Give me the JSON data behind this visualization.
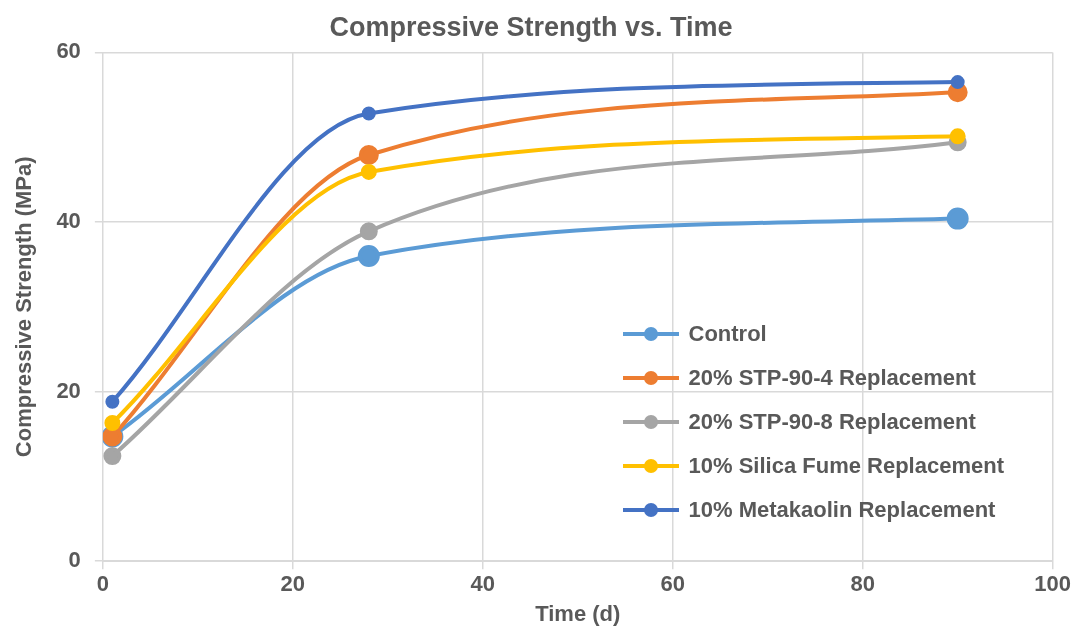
{
  "chart_data": {
    "type": "line",
    "title": "Compressive Strength vs. Time",
    "xlabel": "Time (d)",
    "ylabel": "Compressive Strength (MPa)",
    "x": [
      1,
      28,
      90
    ],
    "xlim": [
      0,
      100
    ],
    "xticks": [
      0,
      20,
      40,
      60,
      80,
      100
    ],
    "ylim": [
      0,
      60
    ],
    "yticks": [
      0,
      20,
      40,
      60
    ],
    "grid": true,
    "legend": "right",
    "marker": "circle",
    "line_style": "solid",
    "series": [
      {
        "name": "Control",
        "color": "#5b9bd5",
        "values": [
          14.7,
          36.0,
          40.4
        ]
      },
      {
        "name": "20% STP-90-4 Replacement",
        "color": "#ed7d31",
        "values": [
          14.7,
          47.9,
          55.3
        ]
      },
      {
        "name": "20% STP-90-8 Replacement",
        "color": "#a5a5a5",
        "values": [
          12.4,
          38.9,
          49.4
        ]
      },
      {
        "name": "10% Silica Fume Replacement",
        "color": "#ffc000",
        "values": [
          16.3,
          45.9,
          50.1
        ]
      },
      {
        "name": "10% Metakaolin Replacement",
        "color": "#4472c4",
        "values": [
          18.8,
          52.8,
          56.5
        ]
      }
    ]
  }
}
